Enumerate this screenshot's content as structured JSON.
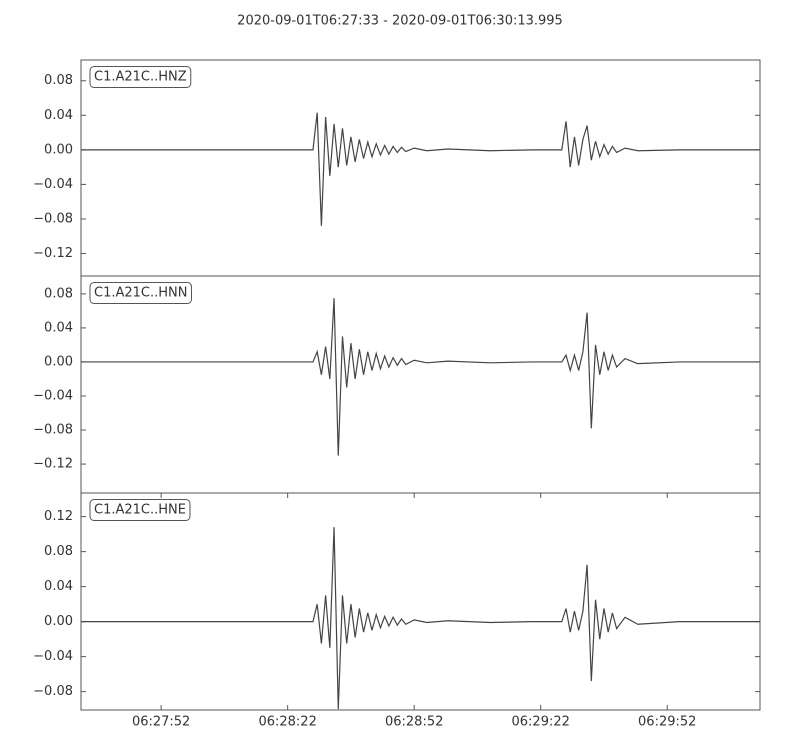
{
  "title": "2020-09-01T06:27:33  -  2020-09-01T06:30:13.995",
  "chart_data": [
    {
      "type": "line",
      "label": "C1.A21C..HNZ",
      "color": "#444444",
      "xlim": [
        "06:27:33",
        "06:30:13.995"
      ],
      "ylim": [
        -0.146,
        0.104
      ],
      "yticks": [
        {
          "value": 0.08,
          "label": "0.08"
        },
        {
          "value": 0.04,
          "label": "0.04"
        },
        {
          "value": 0,
          "label": "0.00"
        },
        {
          "value": -0.04,
          "label": "−0.04"
        },
        {
          "value": -0.08,
          "label": "−0.08"
        },
        {
          "value": -0.12,
          "label": "−0.12"
        }
      ],
      "x": [
        "06:27:33",
        "06:27:53",
        "06:28:13",
        "06:28:28",
        "06:28:29",
        "06:28:30",
        "06:28:31",
        "06:28:32",
        "06:28:33",
        "06:28:34",
        "06:28:35",
        "06:28:36",
        "06:28:37",
        "06:28:38",
        "06:28:39",
        "06:28:40",
        "06:28:41",
        "06:28:42",
        "06:28:43",
        "06:28:44",
        "06:28:45",
        "06:28:46",
        "06:28:47",
        "06:28:48",
        "06:28:49",
        "06:28:50",
        "06:28:52",
        "06:28:55",
        "06:29:00",
        "06:29:10",
        "06:29:20",
        "06:29:27",
        "06:29:28",
        "06:29:29",
        "06:29:30",
        "06:29:31",
        "06:29:32",
        "06:29:33",
        "06:29:34",
        "06:29:35",
        "06:29:36",
        "06:29:37",
        "06:29:38",
        "06:29:39",
        "06:29:40",
        "06:29:42",
        "06:29:45",
        "06:29:55",
        "06:30:05",
        "06:30:13.995"
      ],
      "values": [
        0,
        0,
        0,
        0,
        0.043,
        -0.088,
        0.038,
        -0.03,
        0.03,
        -0.02,
        0.025,
        -0.018,
        0.015,
        -0.014,
        0.012,
        -0.01,
        0.009,
        -0.008,
        0.007,
        -0.006,
        0.005,
        -0.005,
        0.004,
        -0.003,
        0.003,
        -0.002,
        0.002,
        -0.001,
        0.001,
        -0.001,
        0,
        0,
        0.033,
        -0.02,
        0.015,
        -0.018,
        0.012,
        0.028,
        -0.012,
        0.01,
        -0.008,
        0.006,
        -0.005,
        0.004,
        -0.003,
        0.002,
        -0.001,
        0,
        0,
        0
      ]
    },
    {
      "type": "line",
      "label": "C1.A21C..HNN",
      "color": "#444444",
      "xlim": [
        "06:27:33",
        "06:30:13.995"
      ],
      "ylim": [
        -0.154,
        0.101
      ],
      "yticks": [
        {
          "value": 0.08,
          "label": "0.08"
        },
        {
          "value": 0.04,
          "label": "0.04"
        },
        {
          "value": 0,
          "label": "0.00"
        },
        {
          "value": -0.04,
          "label": "−0.04"
        },
        {
          "value": -0.08,
          "label": "−0.08"
        },
        {
          "value": -0.12,
          "label": "−0.12"
        }
      ],
      "x": [
        "06:27:33",
        "06:27:53",
        "06:28:13",
        "06:28:28",
        "06:28:29",
        "06:28:30",
        "06:28:31",
        "06:28:32",
        "06:28:33",
        "06:28:34",
        "06:28:35",
        "06:28:36",
        "06:28:37",
        "06:28:38",
        "06:28:39",
        "06:28:40",
        "06:28:41",
        "06:28:42",
        "06:28:43",
        "06:28:44",
        "06:28:45",
        "06:28:46",
        "06:28:47",
        "06:28:48",
        "06:28:49",
        "06:28:50",
        "06:28:52",
        "06:28:55",
        "06:29:00",
        "06:29:10",
        "06:29:20",
        "06:29:27",
        "06:29:28",
        "06:29:29",
        "06:29:30",
        "06:29:31",
        "06:29:32",
        "06:29:33",
        "06:29:34",
        "06:29:35",
        "06:29:36",
        "06:29:37",
        "06:29:38",
        "06:29:39",
        "06:29:40",
        "06:29:42",
        "06:29:45",
        "06:29:55",
        "06:30:05",
        "06:30:13.995"
      ],
      "values": [
        0,
        0,
        0,
        0,
        0.012,
        -0.015,
        0.018,
        -0.02,
        0.075,
        -0.11,
        0.03,
        -0.03,
        0.022,
        -0.02,
        0.015,
        -0.015,
        0.012,
        -0.01,
        0.01,
        -0.008,
        0.007,
        -0.006,
        0.005,
        -0.004,
        0.004,
        -0.003,
        0.002,
        -0.001,
        0.001,
        -0.001,
        0,
        0,
        0.008,
        -0.01,
        0.008,
        -0.01,
        0.012,
        0.058,
        -0.078,
        0.02,
        -0.015,
        0.012,
        -0.01,
        0.008,
        -0.006,
        0.004,
        -0.002,
        0,
        0,
        0
      ]
    },
    {
      "type": "line",
      "label": "C1.A21C..HNE",
      "color": "#444444",
      "xlim": [
        "06:27:33",
        "06:30:13.995"
      ],
      "ylim": [
        -0.101,
        0.147
      ],
      "yticks": [
        {
          "value": 0.12,
          "label": "0.12"
        },
        {
          "value": 0.08,
          "label": "0.08"
        },
        {
          "value": 0.04,
          "label": "0.04"
        },
        {
          "value": 0,
          "label": "0.00"
        },
        {
          "value": -0.04,
          "label": "−0.04"
        },
        {
          "value": -0.08,
          "label": "−0.08"
        }
      ],
      "xticks": [
        "06:27:52",
        "06:28:22",
        "06:28:52",
        "06:29:22",
        "06:29:52"
      ],
      "x": [
        "06:27:33",
        "06:27:53",
        "06:28:13",
        "06:28:28",
        "06:28:29",
        "06:28:30",
        "06:28:31",
        "06:28:32",
        "06:28:33",
        "06:28:34",
        "06:28:35",
        "06:28:36",
        "06:28:37",
        "06:28:38",
        "06:28:39",
        "06:28:40",
        "06:28:41",
        "06:28:42",
        "06:28:43",
        "06:28:44",
        "06:28:45",
        "06:28:46",
        "06:28:47",
        "06:28:48",
        "06:28:49",
        "06:28:50",
        "06:28:52",
        "06:28:55",
        "06:29:00",
        "06:29:10",
        "06:29:20",
        "06:29:27",
        "06:29:28",
        "06:29:29",
        "06:29:30",
        "06:29:31",
        "06:29:32",
        "06:29:33",
        "06:29:34",
        "06:29:35",
        "06:29:36",
        "06:29:37",
        "06:29:38",
        "06:29:39",
        "06:29:40",
        "06:29:42",
        "06:29:45",
        "06:29:55",
        "06:30:05",
        "06:30:13.995"
      ],
      "values": [
        0,
        0,
        0,
        0,
        0.02,
        -0.025,
        0.03,
        -0.03,
        0.108,
        -0.1,
        0.03,
        -0.025,
        0.02,
        -0.018,
        0.015,
        -0.012,
        0.01,
        -0.01,
        0.008,
        -0.007,
        0.006,
        -0.005,
        0.005,
        -0.004,
        0.003,
        -0.003,
        0.002,
        -0.001,
        0.001,
        -0.001,
        0,
        0,
        0.015,
        -0.012,
        0.012,
        -0.01,
        0.012,
        0.065,
        -0.068,
        0.025,
        -0.02,
        0.015,
        -0.012,
        0.01,
        -0.008,
        0.005,
        -0.003,
        0,
        0,
        0
      ]
    }
  ]
}
